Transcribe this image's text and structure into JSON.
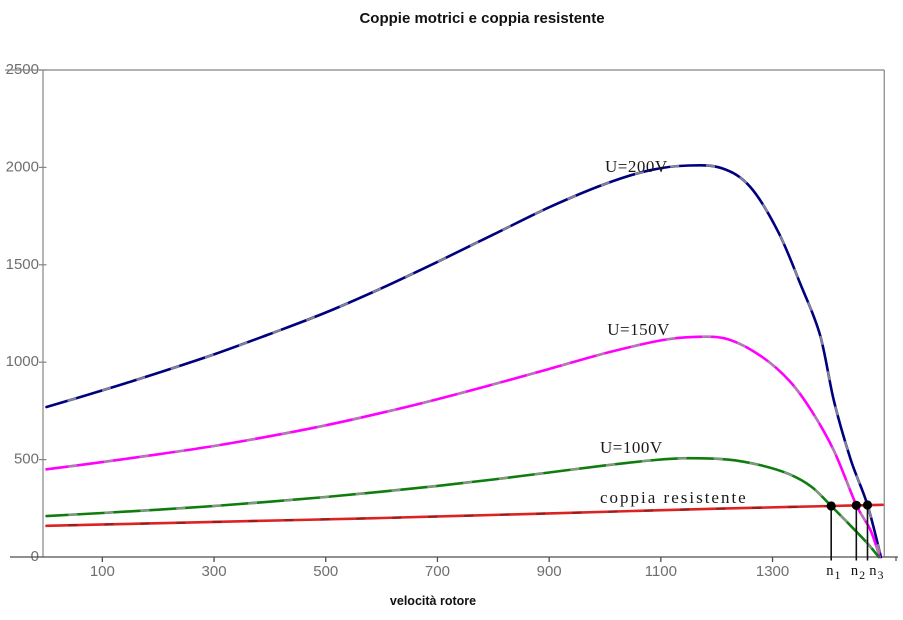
{
  "title": "Coppie motrici e coppia resistente",
  "chart_data": {
    "type": "line",
    "title": "Coppie motrici e coppia resistente",
    "xlabel": "velocità rotore",
    "ylabel": "",
    "xlim": [
      0,
      1500
    ],
    "ylim": [
      0,
      2500
    ],
    "x_ticks": [
      100,
      300,
      500,
      700,
      900,
      1100,
      1300
    ],
    "y_ticks": [
      0,
      500,
      1000,
      1500,
      2000,
      2500
    ],
    "grid": false,
    "legend": "inline-labels",
    "colors": {
      "axis": "#858585",
      "x_axis": "#4d4d4d",
      "tick_label": "#6f6f6f",
      "annotation": "#1a1a1a",
      "dot": "#000000",
      "leader": "#111111"
    },
    "series": [
      {
        "name": "U=200V",
        "slug": "u-200v",
        "color": "#00007E",
        "overlay": "#9a9a9a",
        "label_anchor": {
          "x": 1000,
          "y": 1997
        },
        "points": [
          [
            0,
            770
          ],
          [
            100,
            855
          ],
          [
            200,
            945
          ],
          [
            300,
            1040
          ],
          [
            400,
            1145
          ],
          [
            500,
            1255
          ],
          [
            600,
            1380
          ],
          [
            700,
            1515
          ],
          [
            800,
            1655
          ],
          [
            900,
            1795
          ],
          [
            1000,
            1915
          ],
          [
            1080,
            1985
          ],
          [
            1150,
            2010
          ],
          [
            1210,
            1995
          ],
          [
            1260,
            1900
          ],
          [
            1310,
            1670
          ],
          [
            1350,
            1400
          ],
          [
            1385,
            1140
          ],
          [
            1410,
            800
          ],
          [
            1440,
            500
          ],
          [
            1470,
            267
          ],
          [
            1494,
            0
          ]
        ]
      },
      {
        "name": "U=150V",
        "slug": "u-150v",
        "color": "#FF00FF",
        "overlay": "#9a9a9a",
        "label_anchor": {
          "x": 1004,
          "y": 1160
        },
        "points": [
          [
            0,
            450
          ],
          [
            100,
            487
          ],
          [
            200,
            527
          ],
          [
            300,
            570
          ],
          [
            400,
            620
          ],
          [
            500,
            676
          ],
          [
            600,
            740
          ],
          [
            700,
            810
          ],
          [
            800,
            886
          ],
          [
            900,
            965
          ],
          [
            1000,
            1046
          ],
          [
            1100,
            1112
          ],
          [
            1160,
            1130
          ],
          [
            1220,
            1118
          ],
          [
            1280,
            1030
          ],
          [
            1330,
            905
          ],
          [
            1370,
            750
          ],
          [
            1410,
            545
          ],
          [
            1450,
            267
          ],
          [
            1475,
            140
          ],
          [
            1492,
            0
          ]
        ]
      },
      {
        "name": "U=100V",
        "slug": "u-100v",
        "color": "#0E7D0E",
        "overlay": "#9a9a9a",
        "label_anchor": {
          "x": 991,
          "y": 554
        },
        "points": [
          [
            0,
            210
          ],
          [
            100,
            226
          ],
          [
            200,
            243
          ],
          [
            300,
            262
          ],
          [
            400,
            284
          ],
          [
            500,
            308
          ],
          [
            600,
            335
          ],
          [
            700,
            365
          ],
          [
            800,
            398
          ],
          [
            900,
            434
          ],
          [
            1000,
            470
          ],
          [
            1090,
            498
          ],
          [
            1150,
            507
          ],
          [
            1220,
            500
          ],
          [
            1280,
            470
          ],
          [
            1330,
            425
          ],
          [
            1370,
            360
          ],
          [
            1405,
            262
          ],
          [
            1440,
            160
          ],
          [
            1470,
            70
          ],
          [
            1490,
            0
          ]
        ]
      },
      {
        "name": "coppia resistente",
        "slug": "coppia-resistente",
        "color": "#DD2222",
        "overlay": "#8d1a1a",
        "label_anchor": {
          "x": 991,
          "y": 298
        },
        "points": [
          [
            0,
            160
          ],
          [
            150,
            170
          ],
          [
            300,
            180
          ],
          [
            450,
            190
          ],
          [
            600,
            200
          ],
          [
            750,
            212
          ],
          [
            900,
            224
          ],
          [
            1050,
            236
          ],
          [
            1200,
            248
          ],
          [
            1320,
            256
          ],
          [
            1405,
            262
          ],
          [
            1450,
            265
          ],
          [
            1497,
            268
          ]
        ]
      }
    ],
    "operating_points": [
      {
        "base": "n",
        "sub": "1",
        "x": 1405,
        "y": 262,
        "label_x": 1409
      },
      {
        "base": "n",
        "sub": "2",
        "x": 1450,
        "y": 265,
        "label_x": 1453
      },
      {
        "base": "n",
        "sub": "3",
        "x": 1470,
        "y": 267,
        "label_x": 1486
      }
    ]
  }
}
